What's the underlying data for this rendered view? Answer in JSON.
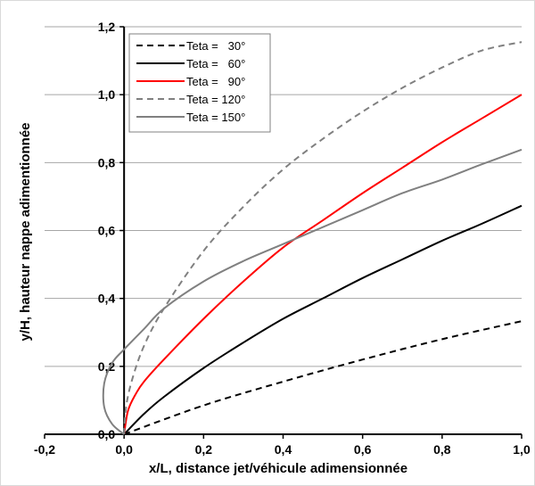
{
  "chart_data": {
    "type": "line",
    "xlabel": "x/L, distance jet/véhicule adimensionnée",
    "ylabel": "y/H, hauteur nappe adimentionnée",
    "xlim": [
      -0.2,
      1.0
    ],
    "ylim": [
      0.0,
      1.2
    ],
    "x_ticks": [
      "-0,2",
      "0,0",
      "0,2",
      "0,4",
      "0,6",
      "0,8",
      "1,0"
    ],
    "y_ticks": [
      "0,0",
      "0,2",
      "0,4",
      "0,6",
      "0,8",
      "1,0",
      "1,2"
    ],
    "grid": "horizontal",
    "legend_position": "top-left",
    "series": [
      {
        "name": "Teta =   30°",
        "color": "#000000",
        "dash": "dashed",
        "points": [
          [
            0.0,
            0.0
          ],
          [
            0.2,
            0.085
          ],
          [
            0.4,
            0.155
          ],
          [
            0.6,
            0.22
          ],
          [
            0.8,
            0.28
          ],
          [
            1.0,
            0.333
          ]
        ]
      },
      {
        "name": "Teta =   60°",
        "color": "#000000",
        "dash": "solid",
        "points": [
          [
            0.0,
            0.0
          ],
          [
            0.05,
            0.06
          ],
          [
            0.1,
            0.11
          ],
          [
            0.2,
            0.195
          ],
          [
            0.3,
            0.27
          ],
          [
            0.4,
            0.34
          ],
          [
            0.5,
            0.4
          ],
          [
            0.6,
            0.46
          ],
          [
            0.7,
            0.515
          ],
          [
            0.8,
            0.57
          ],
          [
            0.9,
            0.62
          ],
          [
            1.0,
            0.673
          ]
        ]
      },
      {
        "name": "Teta =   90°",
        "color": "#ff0000",
        "dash": "solid",
        "points": [
          [
            0.0,
            0.0
          ],
          [
            0.01,
            0.07
          ],
          [
            0.03,
            0.12
          ],
          [
            0.05,
            0.155
          ],
          [
            0.1,
            0.22
          ],
          [
            0.2,
            0.34
          ],
          [
            0.3,
            0.45
          ],
          [
            0.4,
            0.55
          ],
          [
            0.5,
            0.63
          ],
          [
            0.6,
            0.71
          ],
          [
            0.7,
            0.785
          ],
          [
            0.8,
            0.86
          ],
          [
            0.9,
            0.93
          ],
          [
            1.0,
            1.0
          ]
        ]
      },
      {
        "name": "Teta = 120°",
        "color": "#808080",
        "dash": "dashed",
        "points": [
          [
            0.0,
            0.0
          ],
          [
            0.005,
            0.08
          ],
          [
            0.02,
            0.16
          ],
          [
            0.05,
            0.26
          ],
          [
            0.1,
            0.37
          ],
          [
            0.2,
            0.54
          ],
          [
            0.3,
            0.67
          ],
          [
            0.4,
            0.78
          ],
          [
            0.5,
            0.87
          ],
          [
            0.6,
            0.95
          ],
          [
            0.7,
            1.02
          ],
          [
            0.8,
            1.08
          ],
          [
            0.9,
            1.13
          ],
          [
            1.0,
            1.155
          ]
        ]
      },
      {
        "name": "Teta = 150°",
        "color": "#808080",
        "dash": "solid",
        "points": [
          [
            0.0,
            0.0
          ],
          [
            -0.03,
            0.03
          ],
          [
            -0.05,
            0.08
          ],
          [
            -0.05,
            0.15
          ],
          [
            -0.03,
            0.21
          ],
          [
            0.0,
            0.25
          ],
          [
            0.05,
            0.31
          ],
          [
            0.1,
            0.37
          ],
          [
            0.2,
            0.45
          ],
          [
            0.3,
            0.51
          ],
          [
            0.4,
            0.56
          ],
          [
            0.5,
            0.61
          ],
          [
            0.6,
            0.66
          ],
          [
            0.7,
            0.71
          ],
          [
            0.8,
            0.75
          ],
          [
            0.9,
            0.795
          ],
          [
            1.0,
            0.838
          ]
        ]
      }
    ]
  }
}
